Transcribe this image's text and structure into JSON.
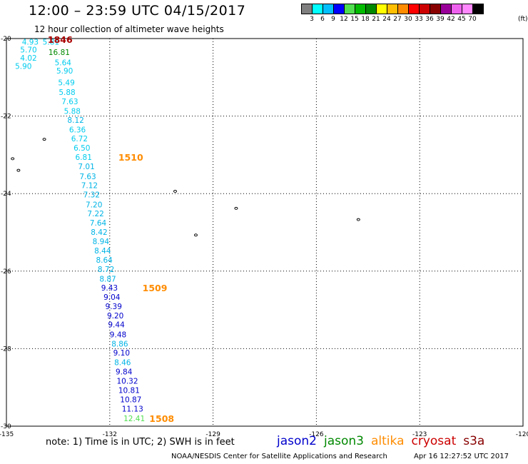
{
  "header": {
    "title": "12:00 – 23:59 UTC 04/15/2017",
    "subtitle": "12 hour collection of altimeter wave heights"
  },
  "colorbar": {
    "colors": [
      "#7f7f7f",
      "#00ffff",
      "#00bfff",
      "#0000ff",
      "#4fdf4f",
      "#00bb00",
      "#008800",
      "#ffff00",
      "#ffbf00",
      "#ff8c00",
      "#ff0000",
      "#cc0000",
      "#880000",
      "#990099",
      "#ee60ee",
      "#ff88ff",
      "#000000"
    ],
    "labels": [
      "3",
      "6",
      "9",
      "12",
      "15",
      "18",
      "21",
      "24",
      "27",
      "30",
      "33",
      "36",
      "39",
      "42",
      "45",
      "70"
    ],
    "unit": "(ft)"
  },
  "axes": {
    "lon_ticks": [
      -135,
      -132,
      -129,
      -126,
      -123,
      -120
    ],
    "lon_labels": [
      "-135",
      "-132",
      "-129",
      "-126",
      "-123",
      "-120"
    ],
    "lat_ticks": [
      -20,
      -22,
      -24,
      -26,
      -28,
      -30
    ],
    "lat_labels": [
      "-20",
      "-22",
      "-24",
      "-26",
      "-28",
      "-30"
    ],
    "lon_range": [
      -135,
      -120
    ],
    "lat_range": [
      -30,
      -20
    ]
  },
  "observations": [
    {
      "lon": -134.55,
      "lat": -20.08,
      "swh": "4.93",
      "color": "#00ccee"
    },
    {
      "lon": -133.95,
      "lat": -20.08,
      "swh": "5.81",
      "color": "#00ccee"
    },
    {
      "lon": -134.6,
      "lat": -20.29,
      "swh": "5.70",
      "color": "#00ccee"
    },
    {
      "lon": -133.78,
      "lat": -20.35,
      "swh": "16.81",
      "color": "#008800"
    },
    {
      "lon": -134.6,
      "lat": -20.5,
      "swh": "4.02",
      "color": "#00ccee"
    },
    {
      "lon": -133.6,
      "lat": -20.62,
      "swh": "5.64",
      "color": "#00ccee"
    },
    {
      "lon": -134.75,
      "lat": -20.71,
      "swh": "5.90",
      "color": "#00ccee"
    },
    {
      "lon": -133.55,
      "lat": -20.83,
      "swh": "5.90",
      "color": "#00ccee"
    },
    {
      "lon": -133.5,
      "lat": -21.13,
      "swh": "5.49",
      "color": "#00ccee"
    },
    {
      "lon": -133.48,
      "lat": -21.38,
      "swh": "5.88",
      "color": "#00ccee"
    },
    {
      "lon": -133.4,
      "lat": -21.62,
      "swh": "7.63",
      "color": "#00ccee"
    },
    {
      "lon": -133.33,
      "lat": -21.87,
      "swh": "5.88",
      "color": "#00ccee"
    },
    {
      "lon": -133.23,
      "lat": -22.1,
      "swh": "8.12",
      "color": "#00b4e6"
    },
    {
      "lon": -133.18,
      "lat": -22.35,
      "swh": "6.36",
      "color": "#00ccee"
    },
    {
      "lon": -133.12,
      "lat": -22.58,
      "swh": "6.72",
      "color": "#00ccee"
    },
    {
      "lon": -133.05,
      "lat": -22.82,
      "swh": "6.50",
      "color": "#00ccee"
    },
    {
      "lon": -133.0,
      "lat": -23.06,
      "swh": "6.81",
      "color": "#00ccee"
    },
    {
      "lon": -132.92,
      "lat": -23.3,
      "swh": "7.01",
      "color": "#00b4e6"
    },
    {
      "lon": -132.88,
      "lat": -23.55,
      "swh": "7.63",
      "color": "#00b4e6"
    },
    {
      "lon": -132.83,
      "lat": -23.78,
      "swh": "7.12",
      "color": "#00b4e6"
    },
    {
      "lon": -132.77,
      "lat": -24.02,
      "swh": "7.32",
      "color": "#00b4e6"
    },
    {
      "lon": -132.7,
      "lat": -24.28,
      "swh": "7.20",
      "color": "#00b4e6"
    },
    {
      "lon": -132.65,
      "lat": -24.51,
      "swh": "7.22",
      "color": "#00b4e6"
    },
    {
      "lon": -132.58,
      "lat": -24.75,
      "swh": "7.64",
      "color": "#00b4e6"
    },
    {
      "lon": -132.55,
      "lat": -24.99,
      "swh": "8.42",
      "color": "#00b4e6"
    },
    {
      "lon": -132.5,
      "lat": -25.23,
      "swh": "8.94",
      "color": "#00b4e6"
    },
    {
      "lon": -132.45,
      "lat": -25.47,
      "swh": "8.44",
      "color": "#00b4e6"
    },
    {
      "lon": -132.4,
      "lat": -25.71,
      "swh": "8.64",
      "color": "#00b4e6"
    },
    {
      "lon": -132.35,
      "lat": -25.95,
      "swh": "8.72",
      "color": "#00b4e6"
    },
    {
      "lon": -132.3,
      "lat": -26.2,
      "swh": "8.87",
      "color": "#00b4e6"
    },
    {
      "lon": -132.25,
      "lat": -26.43,
      "swh": "9.43",
      "color": "#0000cc"
    },
    {
      "lon": -132.18,
      "lat": -26.67,
      "swh": "9.04",
      "color": "#0000cc"
    },
    {
      "lon": -132.13,
      "lat": -26.91,
      "swh": "9.39",
      "color": "#0000cc"
    },
    {
      "lon": -132.08,
      "lat": -27.15,
      "swh": "9.20",
      "color": "#0000cc"
    },
    {
      "lon": -132.05,
      "lat": -27.38,
      "swh": "9.44",
      "color": "#0000cc"
    },
    {
      "lon": -132.0,
      "lat": -27.63,
      "swh": "9.48",
      "color": "#0000cc"
    },
    {
      "lon": -131.95,
      "lat": -27.87,
      "swh": "8.86",
      "color": "#00b4e6"
    },
    {
      "lon": -131.9,
      "lat": -28.1,
      "swh": "9.10",
      "color": "#0000cc"
    },
    {
      "lon": -131.87,
      "lat": -28.35,
      "swh": "8.46",
      "color": "#00b4e6"
    },
    {
      "lon": -131.83,
      "lat": -28.59,
      "swh": "9.84",
      "color": "#0000cc"
    },
    {
      "lon": -131.8,
      "lat": -28.83,
      "swh": "10.32",
      "color": "#0000cc"
    },
    {
      "lon": -131.75,
      "lat": -29.07,
      "swh": "10.81",
      "color": "#0000cc"
    },
    {
      "lon": -131.7,
      "lat": -29.31,
      "swh": "10.87",
      "color": "#0000cc"
    },
    {
      "lon": -131.65,
      "lat": -29.55,
      "swh": "11.13",
      "color": "#0000cc"
    },
    {
      "lon": -131.6,
      "lat": -29.8,
      "swh": "12.41",
      "color": "#4fdf4f"
    }
  ],
  "track_times": [
    {
      "lon": -133.8,
      "lat": -20.02,
      "text": "1846",
      "color": "#aa0000"
    },
    {
      "lon": -131.75,
      "lat": -23.06,
      "text": "1510",
      "color": "#ff8c00"
    },
    {
      "lon": -131.05,
      "lat": -26.43,
      "text": "1509",
      "color": "#ff8c00"
    },
    {
      "lon": -130.85,
      "lat": -29.8,
      "text": "1508",
      "color": "#ff8c00"
    }
  ],
  "islands": [
    {
      "lon": -133.9,
      "lat": -22.6
    },
    {
      "lon": -134.82,
      "lat": -23.1
    },
    {
      "lon": -134.65,
      "lat": -23.4
    },
    {
      "lon": -130.1,
      "lat": -23.94
    },
    {
      "lon": -129.5,
      "lat": -25.07
    },
    {
      "lon": -128.33,
      "lat": -24.38
    },
    {
      "lon": -124.78,
      "lat": -24.67
    }
  ],
  "note": "note:  1) Time is in UTC;  2) SWH is in feet",
  "legend": [
    {
      "name": "jason2",
      "color": "#0000cc"
    },
    {
      "name": "jason3",
      "color": "#008800"
    },
    {
      "name": "altika",
      "color": "#ff8c00"
    },
    {
      "name": "cryosat",
      "color": "#cc0000"
    },
    {
      "name": "s3a",
      "color": "#880000"
    }
  ],
  "footer": {
    "left": "NOAA/NESDIS Center for Satellite Applications and Research",
    "right": "Apr 16 12:27:52 UTC 2017"
  }
}
